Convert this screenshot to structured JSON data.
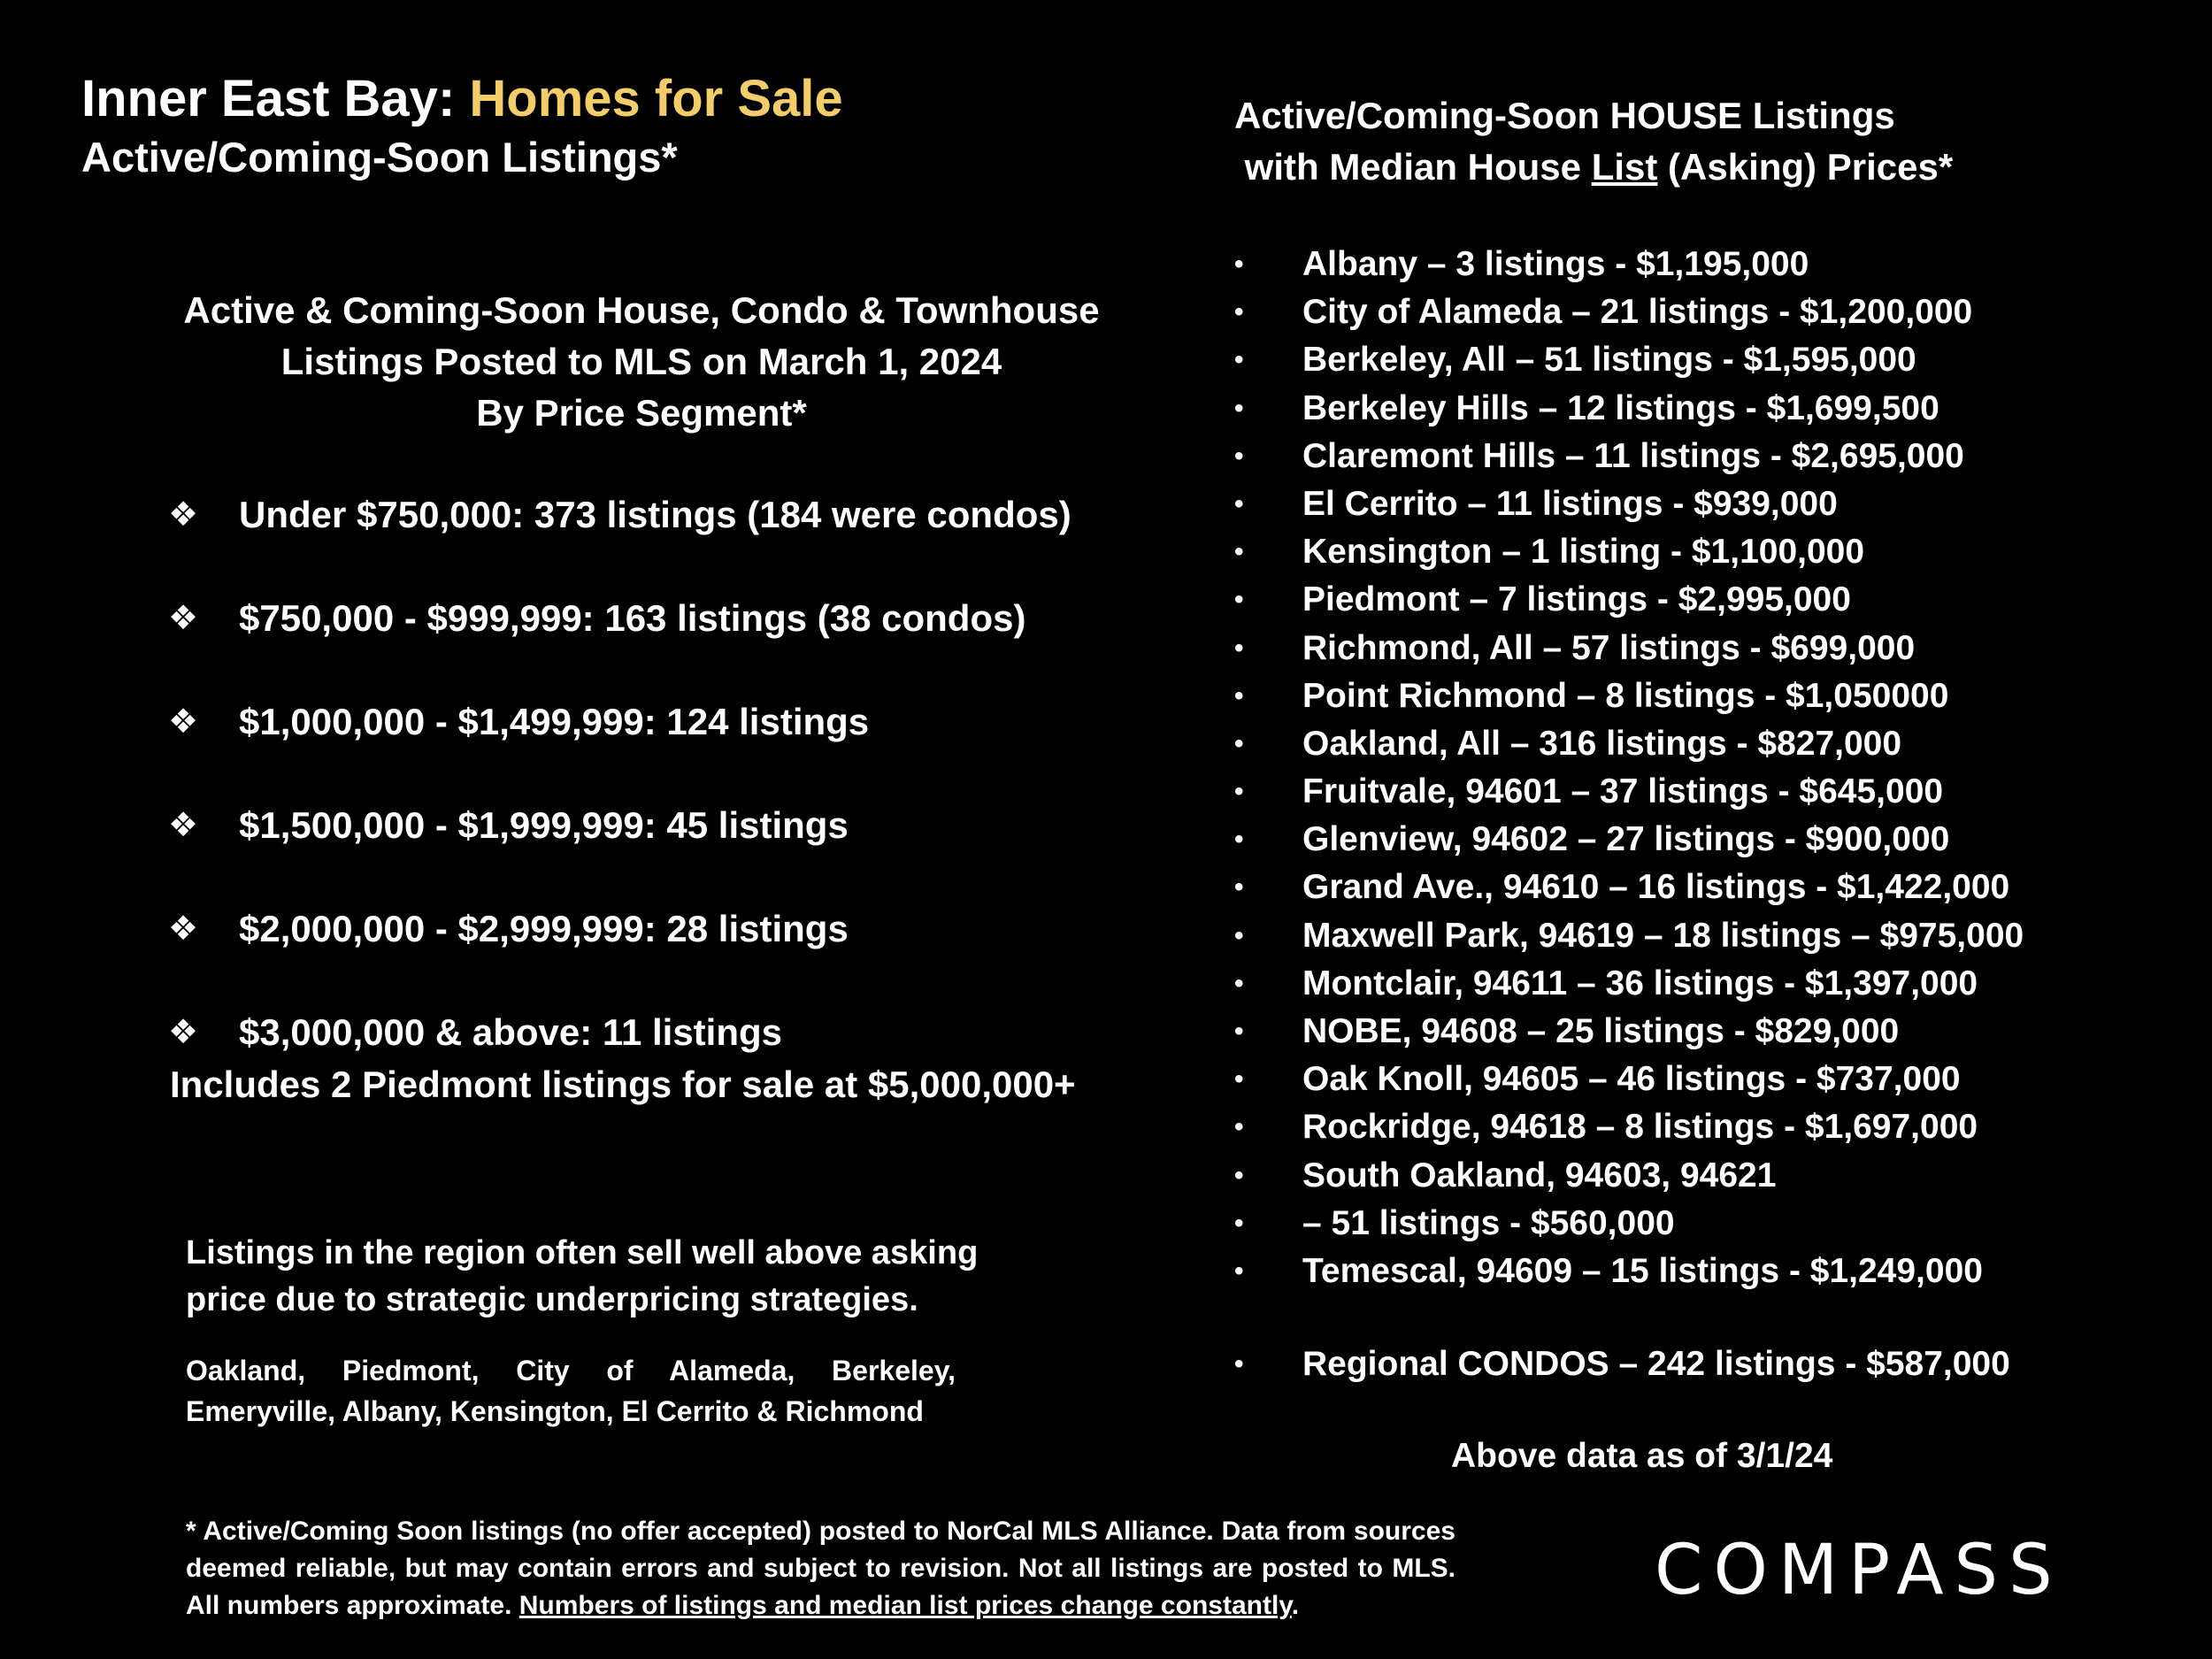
{
  "header": {
    "title_prefix": "Inner East Bay: ",
    "title_accent": "Homes for Sale",
    "subtitle": "Active/Coming-Soon Listings*",
    "accent_color": "#f2cd6a"
  },
  "segments_section": {
    "heading_line1": "Active & Coming-Soon House, Condo & Townhouse",
    "heading_line2": "Listings Posted to MLS on March 1, 2024",
    "heading_line3": "By Price Segment*",
    "items": [
      "Under $750,000:   373 listings (184 were condos)",
      "$750,000 - $999,999:  163 listings (38 condos)",
      "$1,000,000 - $1,499,999:   124 listings",
      "$1,500,000 - $1,999,999:   45 listings",
      "$2,000,000 - $2,999,999:   28 listings",
      "$3,000,000 & above:   11 listings"
    ],
    "note": "Includes 2 Piedmont listings for sale at $5,000,000+"
  },
  "region": {
    "note_line1": "Listings in the region often sell well above asking",
    "note_line2": "price due to strategic underpricing strategies.",
    "cities": "Oakland, Piedmont, City of Alameda, Berkeley, Emeryville, Albany, Kensington, El Cerrito & Richmond"
  },
  "footnote": {
    "text": "* Active/Coming Soon listings (no offer accepted) posted to NorCal MLS Alliance.  Data from sources deemed reliable, but may contain errors and subject to revision.  Not all listings are posted to MLS. All numbers approximate. ",
    "underlined": "Numbers of listings and median list prices change constantly",
    "end": "."
  },
  "right_column": {
    "heading_line1": "Active/Coming-Soon HOUSE Listings",
    "heading_line2_pre": " with Median House ",
    "heading_line2_u": "List",
    "heading_line2_post": " (Asking) Prices*",
    "bullet": "•",
    "items": [
      "Albany –  3 listings - $1,195,000",
      "City of Alameda –  21 listings - $1,200,000",
      "Berkeley, All –  51 listings - $1,595,000",
      "Berkeley Hills –  12 listings - $1,699,500",
      "Claremont Hills –  11 listings - $2,695,000",
      "El Cerrito –  11 listings - $939,000",
      "Kensington – 1 listing - $1,100,000",
      "Piedmont –  7 listings - $2,995,000",
      "Richmond, All –  57 listings - $699,000",
      "Point Richmond –  8 listings - $1,050000",
      "Oakland, All –  316 listings - $827,000",
      "Fruitvale, 94601 –  37 listings - $645,000",
      "Glenview, 94602 –  27 listings - $900,000",
      "Grand Ave., 94610 –  16 listings - $1,422,000",
      "Maxwell Park, 94619 – 18 listings – $975,000",
      "Montclair, 94611 –  36 listings - $1,397,000",
      "NOBE, 94608 –  25 listings - $829,000",
      "Oak Knoll, 94605 –  46 listings - $737,000",
      "Rockridge, 94618 –  8 listings - $1,697,000",
      "South Oakland, 94603, 94621",
      "–  51 listings - $560,000",
      "Temescal, 94609 –  15 listings - $1,249,000"
    ],
    "condos": "Regional CONDOS –  242 listings - $587,000",
    "as_of": "Above data as of 3/1/24"
  },
  "logo": {
    "text": "COMPASS"
  }
}
